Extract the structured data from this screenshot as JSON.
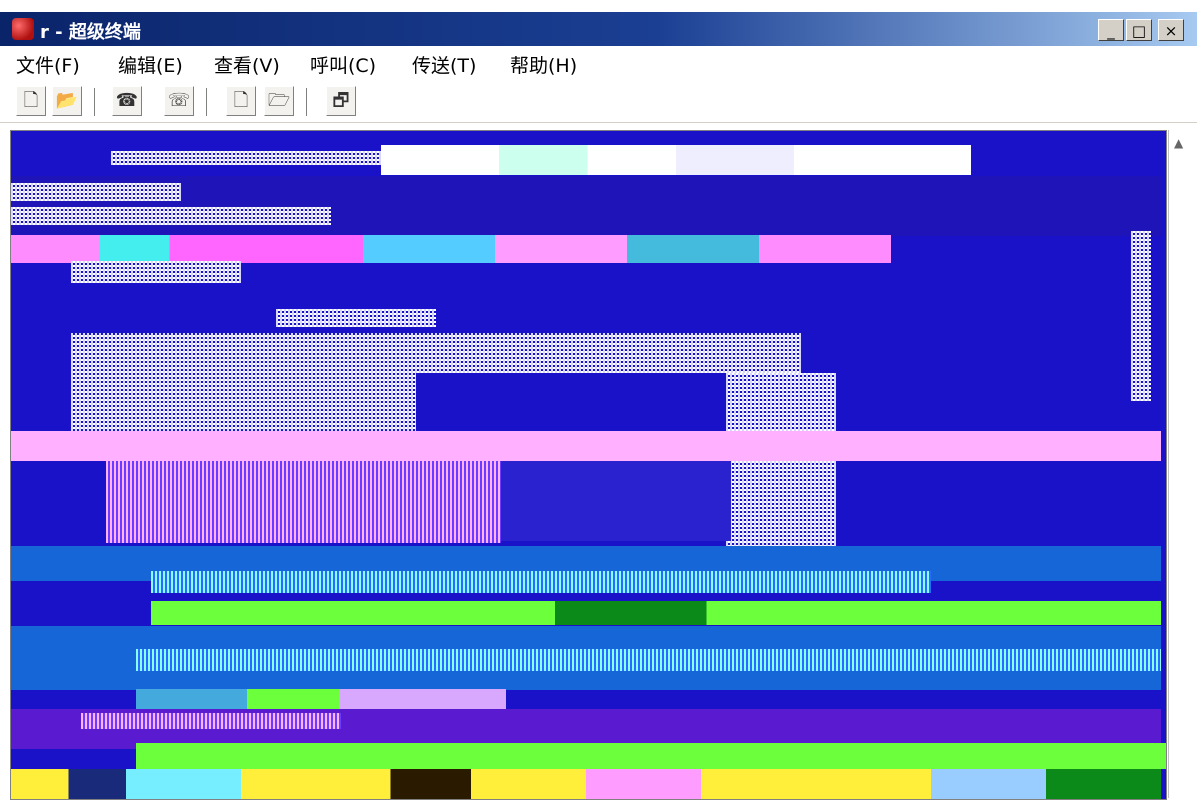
{
  "window": {
    "title": "r - 超级终端",
    "minimize_label": "_",
    "maximize_label": "□",
    "close_label": "×"
  },
  "menu": {
    "items": [
      {
        "label": "文件(F)"
      },
      {
        "label": "编辑(E)"
      },
      {
        "label": "查看(V)"
      },
      {
        "label": "呼叫(C)"
      },
      {
        "label": "传送(T)"
      },
      {
        "label": "帮助(H)"
      }
    ]
  },
  "toolbar": {
    "buttons": [
      {
        "icon": "new-document-icon",
        "glyph": "🗋"
      },
      {
        "icon": "open-folder-icon",
        "glyph": "📂"
      },
      {
        "icon": "phone-dial-icon",
        "glyph": "☎"
      },
      {
        "icon": "disconnect-icon",
        "glyph": "☏"
      },
      {
        "icon": "send-file-icon",
        "glyph": "🗋"
      },
      {
        "icon": "receive-file-icon",
        "glyph": "🗁"
      },
      {
        "icon": "properties-icon",
        "glyph": "🗗"
      }
    ]
  },
  "colors": {
    "terminal_bg": "#1a12c8",
    "title_start": "#0a246a",
    "title_end": "#a6caf0"
  }
}
